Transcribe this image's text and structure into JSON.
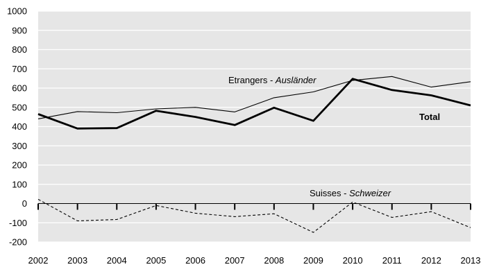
{
  "chart_data": {
    "type": "line",
    "x": [
      "2002",
      "2003",
      "2004",
      "2005",
      "2006",
      "2007",
      "2008",
      "2009",
      "2010",
      "2011",
      "2012",
      "2013"
    ],
    "ylim": [
      -200,
      1000
    ],
    "yticks": [
      "1000",
      "900",
      "800",
      "700",
      "600",
      "500",
      "400",
      "300",
      "200",
      "100",
      "0",
      "-100",
      "-200"
    ],
    "grid": true,
    "background_color": "#e6e6e6",
    "grid_color": "#ffffff",
    "series": [
      {
        "key": "total",
        "values": [
          465,
          390,
          392,
          482,
          450,
          408,
          498,
          430,
          648,
          590,
          562,
          510
        ],
        "color": "#000000",
        "style": "solid-thick"
      },
      {
        "key": "etrangers",
        "values": [
          440,
          478,
          472,
          492,
          500,
          476,
          550,
          580,
          640,
          660,
          605,
          633
        ],
        "color": "#000000",
        "style": "solid-thin"
      },
      {
        "key": "suisses",
        "values": [
          22,
          -90,
          -83,
          -10,
          -50,
          -68,
          -53,
          -150,
          8,
          -72,
          -42,
          -125
        ],
        "color": "#000000",
        "style": "dashed"
      }
    ],
    "annotations": {
      "etrangers_prefix": "Etrangers - ",
      "etrangers_italic": "Ausländer",
      "total": "Total",
      "suisses_prefix": "Suisses - ",
      "suisses_italic": "Schweizer"
    }
  }
}
